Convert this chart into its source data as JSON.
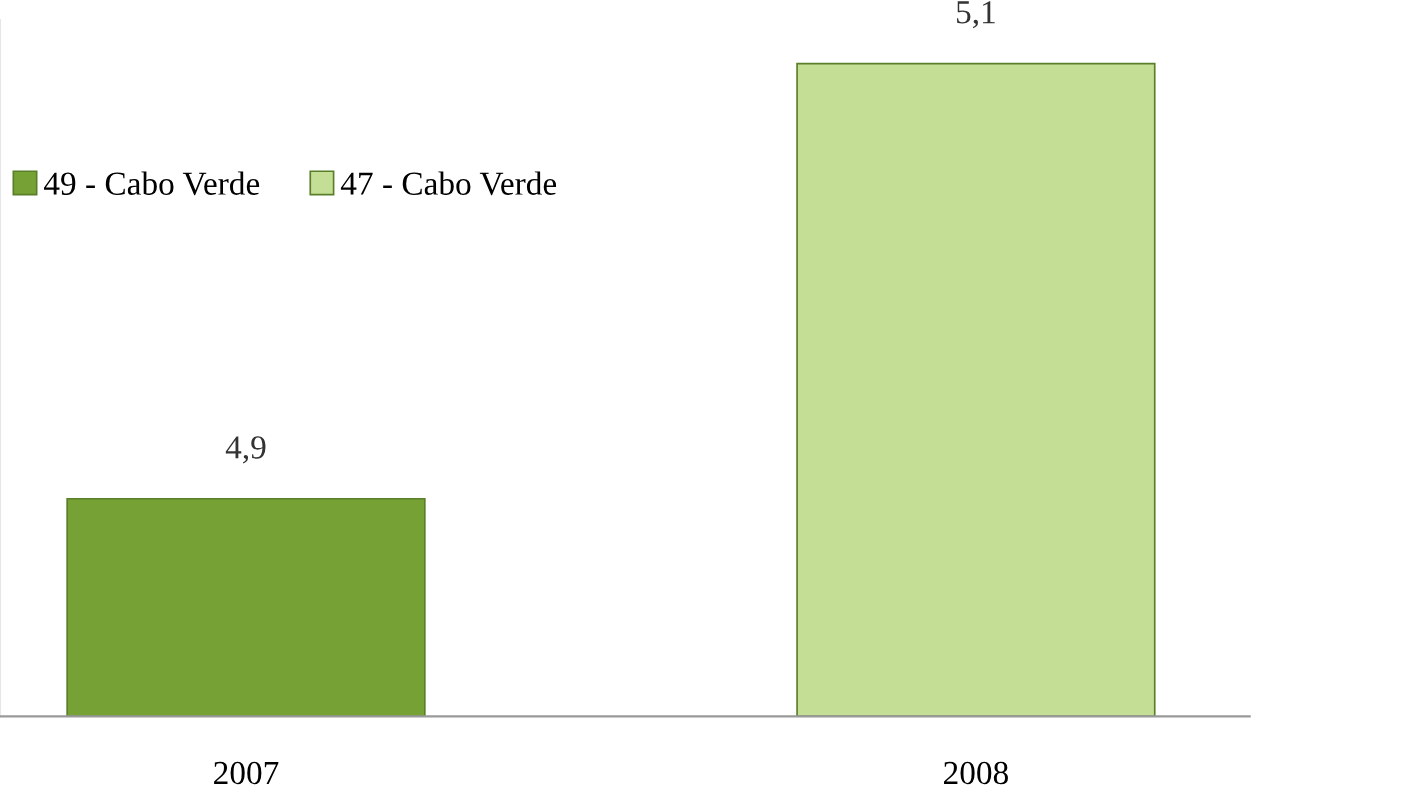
{
  "chart_data": {
    "type": "bar",
    "categories": [
      "2007",
      "2008"
    ],
    "stacked": true,
    "series": [
      {
        "name": "49 - Cabo Verde",
        "color": "#76a235",
        "values": [
          4.9,
          null
        ],
        "value_labels": [
          "4,9",
          null
        ]
      },
      {
        "name": "47 - Cabo Verde",
        "color": "#c4de95",
        "values": [
          null,
          5.1
        ],
        "value_labels": [
          null,
          "5,1"
        ]
      }
    ],
    "ylim": [
      4.8,
      5.12
    ],
    "tick_labels": "x",
    "legend": "top left",
    "grid": false
  }
}
